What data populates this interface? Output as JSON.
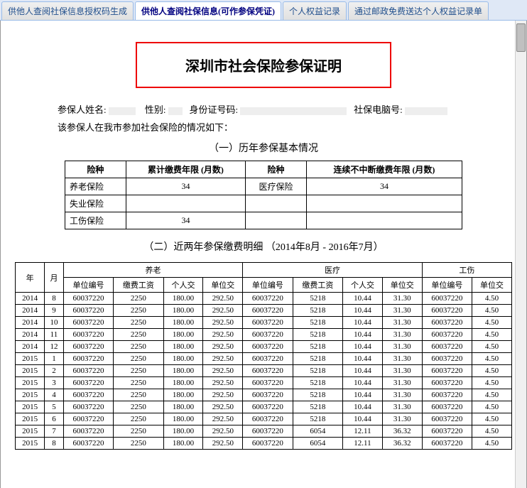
{
  "tabs": [
    {
      "label": "供他人查阅社保信息授权码生成",
      "active": false
    },
    {
      "label": "供他人查阅社保信息(可作参保凭证)",
      "active": true
    },
    {
      "label": "个人权益记录",
      "active": false
    },
    {
      "label": "通过邮政免费送达个人权益记录单",
      "active": false
    }
  ],
  "title": "深圳市社会保险参保证明",
  "info": {
    "name_label": "参保人姓名:",
    "gender_label": "性别:",
    "id_label": "身份证号码:",
    "pc_label": "社保电脑号:",
    "line2": "该参保人在我市参加社会保险的情况如下："
  },
  "section1": {
    "title": "（一）历年参保基本情况",
    "headers": [
      "险种",
      "累计缴费年限 (月数)",
      "险种",
      "连续不中断缴费年限 (月数)"
    ],
    "rows": [
      [
        "养老保险",
        "34",
        "医疗保险",
        "34"
      ],
      [
        "失业保险",
        "",
        "",
        ""
      ],
      [
        "工伤保险",
        "34",
        "",
        ""
      ]
    ]
  },
  "section2": {
    "title": "（二）近两年参保缴费明细 （2014年8月 - 2016年7月）",
    "group_headers": [
      "年",
      "月",
      "养老",
      "医疗",
      "工伤"
    ],
    "sub_headers": [
      "单位编号",
      "缴费工资",
      "个人交",
      "单位交"
    ],
    "sub_headers_short": [
      "单位编号",
      "单位交"
    ],
    "rows": [
      {
        "y": "2014",
        "m": "8",
        "yl": [
          "60037220",
          "2250",
          "180.00",
          "292.50"
        ],
        "yi": [
          "60037220",
          "5218",
          "10.44",
          "31.30"
        ],
        "gs": [
          "60037220",
          "4.50"
        ]
      },
      {
        "y": "2014",
        "m": "9",
        "yl": [
          "60037220",
          "2250",
          "180.00",
          "292.50"
        ],
        "yi": [
          "60037220",
          "5218",
          "10.44",
          "31.30"
        ],
        "gs": [
          "60037220",
          "4.50"
        ]
      },
      {
        "y": "2014",
        "m": "10",
        "yl": [
          "60037220",
          "2250",
          "180.00",
          "292.50"
        ],
        "yi": [
          "60037220",
          "5218",
          "10.44",
          "31.30"
        ],
        "gs": [
          "60037220",
          "4.50"
        ]
      },
      {
        "y": "2014",
        "m": "11",
        "yl": [
          "60037220",
          "2250",
          "180.00",
          "292.50"
        ],
        "yi": [
          "60037220",
          "5218",
          "10.44",
          "31.30"
        ],
        "gs": [
          "60037220",
          "4.50"
        ]
      },
      {
        "y": "2014",
        "m": "12",
        "yl": [
          "60037220",
          "2250",
          "180.00",
          "292.50"
        ],
        "yi": [
          "60037220",
          "5218",
          "10.44",
          "31.30"
        ],
        "gs": [
          "60037220",
          "4.50"
        ]
      },
      {
        "y": "2015",
        "m": "1",
        "yl": [
          "60037220",
          "2250",
          "180.00",
          "292.50"
        ],
        "yi": [
          "60037220",
          "5218",
          "10.44",
          "31.30"
        ],
        "gs": [
          "60037220",
          "4.50"
        ]
      },
      {
        "y": "2015",
        "m": "2",
        "yl": [
          "60037220",
          "2250",
          "180.00",
          "292.50"
        ],
        "yi": [
          "60037220",
          "5218",
          "10.44",
          "31.30"
        ],
        "gs": [
          "60037220",
          "4.50"
        ]
      },
      {
        "y": "2015",
        "m": "3",
        "yl": [
          "60037220",
          "2250",
          "180.00",
          "292.50"
        ],
        "yi": [
          "60037220",
          "5218",
          "10.44",
          "31.30"
        ],
        "gs": [
          "60037220",
          "4.50"
        ]
      },
      {
        "y": "2015",
        "m": "4",
        "yl": [
          "60037220",
          "2250",
          "180.00",
          "292.50"
        ],
        "yi": [
          "60037220",
          "5218",
          "10.44",
          "31.30"
        ],
        "gs": [
          "60037220",
          "4.50"
        ]
      },
      {
        "y": "2015",
        "m": "5",
        "yl": [
          "60037220",
          "2250",
          "180.00",
          "292.50"
        ],
        "yi": [
          "60037220",
          "5218",
          "10.44",
          "31.30"
        ],
        "gs": [
          "60037220",
          "4.50"
        ]
      },
      {
        "y": "2015",
        "m": "6",
        "yl": [
          "60037220",
          "2250",
          "180.00",
          "292.50"
        ],
        "yi": [
          "60037220",
          "5218",
          "10.44",
          "31.30"
        ],
        "gs": [
          "60037220",
          "4.50"
        ]
      },
      {
        "y": "2015",
        "m": "7",
        "yl": [
          "60037220",
          "2250",
          "180.00",
          "292.50"
        ],
        "yi": [
          "60037220",
          "6054",
          "12.11",
          "36.32"
        ],
        "gs": [
          "60037220",
          "4.50"
        ]
      },
      {
        "y": "2015",
        "m": "8",
        "yl": [
          "60037220",
          "2250",
          "180.00",
          "292.50"
        ],
        "yi": [
          "60037220",
          "6054",
          "12.11",
          "36.32"
        ],
        "gs": [
          "60037220",
          "4.50"
        ]
      }
    ]
  },
  "colors": {
    "tab_border": "#99bbe8",
    "tab_bg": "#dfe8f6",
    "title_border": "#e00000",
    "table_border": "#000000"
  }
}
